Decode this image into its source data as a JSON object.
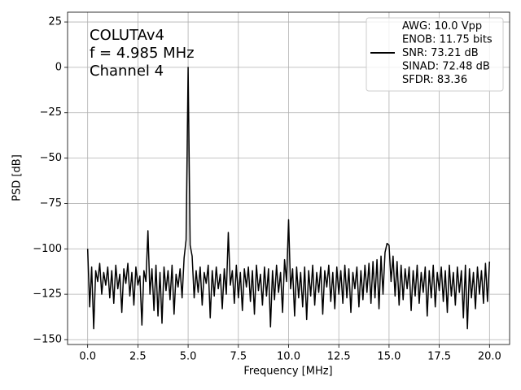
{
  "chart_data": {
    "type": "line",
    "x_label": "Frequency [MHz]",
    "y_label": "PSD [dB]",
    "annotations": [
      "COLUTAv4",
      "f = 4.985 MHz",
      "Channel 4"
    ],
    "xlim": [
      -1,
      21
    ],
    "ylim": [
      -152.7,
      30.4
    ],
    "xticks": [
      {
        "value": 0,
        "label": "0.0"
      },
      {
        "value": 2.5,
        "label": "2.5"
      },
      {
        "value": 5,
        "label": "5.0"
      },
      {
        "value": 7.5,
        "label": "7.5"
      },
      {
        "value": 10,
        "label": "10.0"
      },
      {
        "value": 12.5,
        "label": "12.5"
      },
      {
        "value": 15,
        "label": "15.0"
      },
      {
        "value": 17.5,
        "label": "17.5"
      },
      {
        "value": 20,
        "label": "20.0"
      }
    ],
    "yticks": [
      25,
      0,
      {
        "value": -25,
        "label": "−25"
      },
      {
        "value": -50,
        "label": "−50"
      },
      {
        "value": -75,
        "label": "−75"
      },
      {
        "value": -100,
        "label": "−100"
      },
      {
        "value": -125,
        "label": "−125"
      },
      {
        "value": -150,
        "label": "−150"
      }
    ],
    "grid": true,
    "legend": "upper right",
    "x": [
      0,
      0.1,
      0.2,
      0.3,
      0.4,
      0.5,
      0.6,
      0.7,
      0.8,
      0.9,
      1,
      1.1,
      1.2,
      1.3,
      1.4,
      1.5,
      1.6,
      1.7,
      1.8,
      1.9,
      2,
      2.1,
      2.2,
      2.3,
      2.4,
      2.5,
      2.6,
      2.7,
      2.8,
      2.9,
      3,
      3.1,
      3.2,
      3.3,
      3.4,
      3.5,
      3.6,
      3.7,
      3.8,
      3.9,
      4,
      4.1,
      4.2,
      4.3,
      4.4,
      4.5,
      4.6,
      4.7,
      4.8,
      4.9,
      5,
      5.1,
      5.2,
      5.3,
      5.4,
      5.5,
      5.6,
      5.7,
      5.8,
      5.9,
      6,
      6.1,
      6.2,
      6.3,
      6.4,
      6.5,
      6.6,
      6.7,
      6.8,
      6.9,
      7,
      7.1,
      7.2,
      7.3,
      7.4,
      7.5,
      7.6,
      7.7,
      7.8,
      7.9,
      8,
      8.1,
      8.2,
      8.3,
      8.4,
      8.5,
      8.6,
      8.7,
      8.8,
      8.9,
      9,
      9.1,
      9.2,
      9.3,
      9.4,
      9.5,
      9.6,
      9.7,
      9.8,
      9.9,
      10,
      10.1,
      10.2,
      10.3,
      10.4,
      10.5,
      10.6,
      10.7,
      10.8,
      10.9,
      11,
      11.1,
      11.2,
      11.3,
      11.4,
      11.5,
      11.6,
      11.7,
      11.8,
      11.9,
      12,
      12.1,
      12.2,
      12.3,
      12.4,
      12.5,
      12.6,
      12.7,
      12.8,
      12.9,
      13,
      13.1,
      13.2,
      13.3,
      13.4,
      13.5,
      13.6,
      13.7,
      13.8,
      13.9,
      14,
      14.1,
      14.2,
      14.3,
      14.4,
      14.5,
      14.6,
      14.7,
      14.8,
      14.9,
      15,
      15.1,
      15.2,
      15.3,
      15.4,
      15.5,
      15.6,
      15.7,
      15.8,
      15.9,
      16,
      16.1,
      16.2,
      16.3,
      16.4,
      16.5,
      16.6,
      16.7,
      16.8,
      16.9,
      17,
      17.1,
      17.2,
      17.3,
      17.4,
      17.5,
      17.6,
      17.7,
      17.8,
      17.9,
      18,
      18.1,
      18.2,
      18.3,
      18.4,
      18.5,
      18.6,
      18.7,
      18.8,
      18.9,
      19,
      19.1,
      19.2,
      19.3,
      19.4,
      19.5,
      19.6,
      19.7,
      19.8,
      19.9,
      20
    ],
    "series": [
      {
        "name": "AWG: 10.0 Vpp\nENOB: 11.75 bits\nSNR: 73.21 dB\nSINAD: 72.48 dB\nSFDR: 83.36",
        "color": "#000000",
        "values": [
          -100,
          -132,
          -110,
          -144,
          -112,
          -118,
          -108,
          -125,
          -113,
          -120,
          -110,
          -127,
          -112,
          -130,
          -109,
          -122,
          -114,
          -135,
          -111,
          -119,
          -108,
          -126,
          -113,
          -131,
          -110,
          -120,
          -115,
          -142,
          -112,
          -118,
          -90,
          -125,
          -111,
          -134,
          -109,
          -137,
          -113,
          -141,
          -110,
          -123,
          -112,
          -128,
          -109,
          -136,
          -114,
          -121,
          -111,
          -127,
          -105,
          -95,
          0,
          -98,
          -104,
          -127,
          -112,
          -124,
          -110,
          -131,
          -113,
          -119,
          -109,
          -138,
          -112,
          -126,
          -110,
          -122,
          -114,
          -133,
          -111,
          -125,
          -91,
          -120,
          -112,
          -130,
          -109,
          -127,
          -113,
          -134,
          -111,
          -121,
          -110,
          -129,
          -112,
          -136,
          -109,
          -123,
          -114,
          -131,
          -110,
          -126,
          -111,
          -143,
          -112,
          -128,
          -109,
          -124,
          -113,
          -135,
          -106,
          -118,
          -84,
          -122,
          -111,
          -137,
          -110,
          -127,
          -113,
          -132,
          -110,
          -139,
          -112,
          -126,
          -109,
          -131,
          -113,
          -124,
          -110,
          -136,
          -112,
          -121,
          -109,
          -129,
          -113,
          -133,
          -110,
          -125,
          -112,
          -130,
          -109,
          -127,
          -111,
          -135,
          -113,
          -122,
          -110,
          -132,
          -112,
          -128,
          -109,
          -124,
          -108,
          -130,
          -107,
          -127,
          -106,
          -133,
          -104,
          -125,
          -102,
          -97,
          -98,
          -118,
          -104,
          -126,
          -107,
          -131,
          -109,
          -128,
          -111,
          -122,
          -110,
          -134,
          -112,
          -126,
          -109,
          -130,
          -113,
          -124,
          -110,
          -137,
          -112,
          -127,
          -109,
          -132,
          -113,
          -123,
          -110,
          -129,
          -112,
          -135,
          -109,
          -126,
          -113,
          -131,
          -110,
          -124,
          -112,
          -138,
          -109,
          -144,
          -111,
          -127,
          -113,
          -133,
          -110,
          -125,
          -112,
          -130,
          -108,
          -129,
          -107
        ]
      }
    ]
  }
}
